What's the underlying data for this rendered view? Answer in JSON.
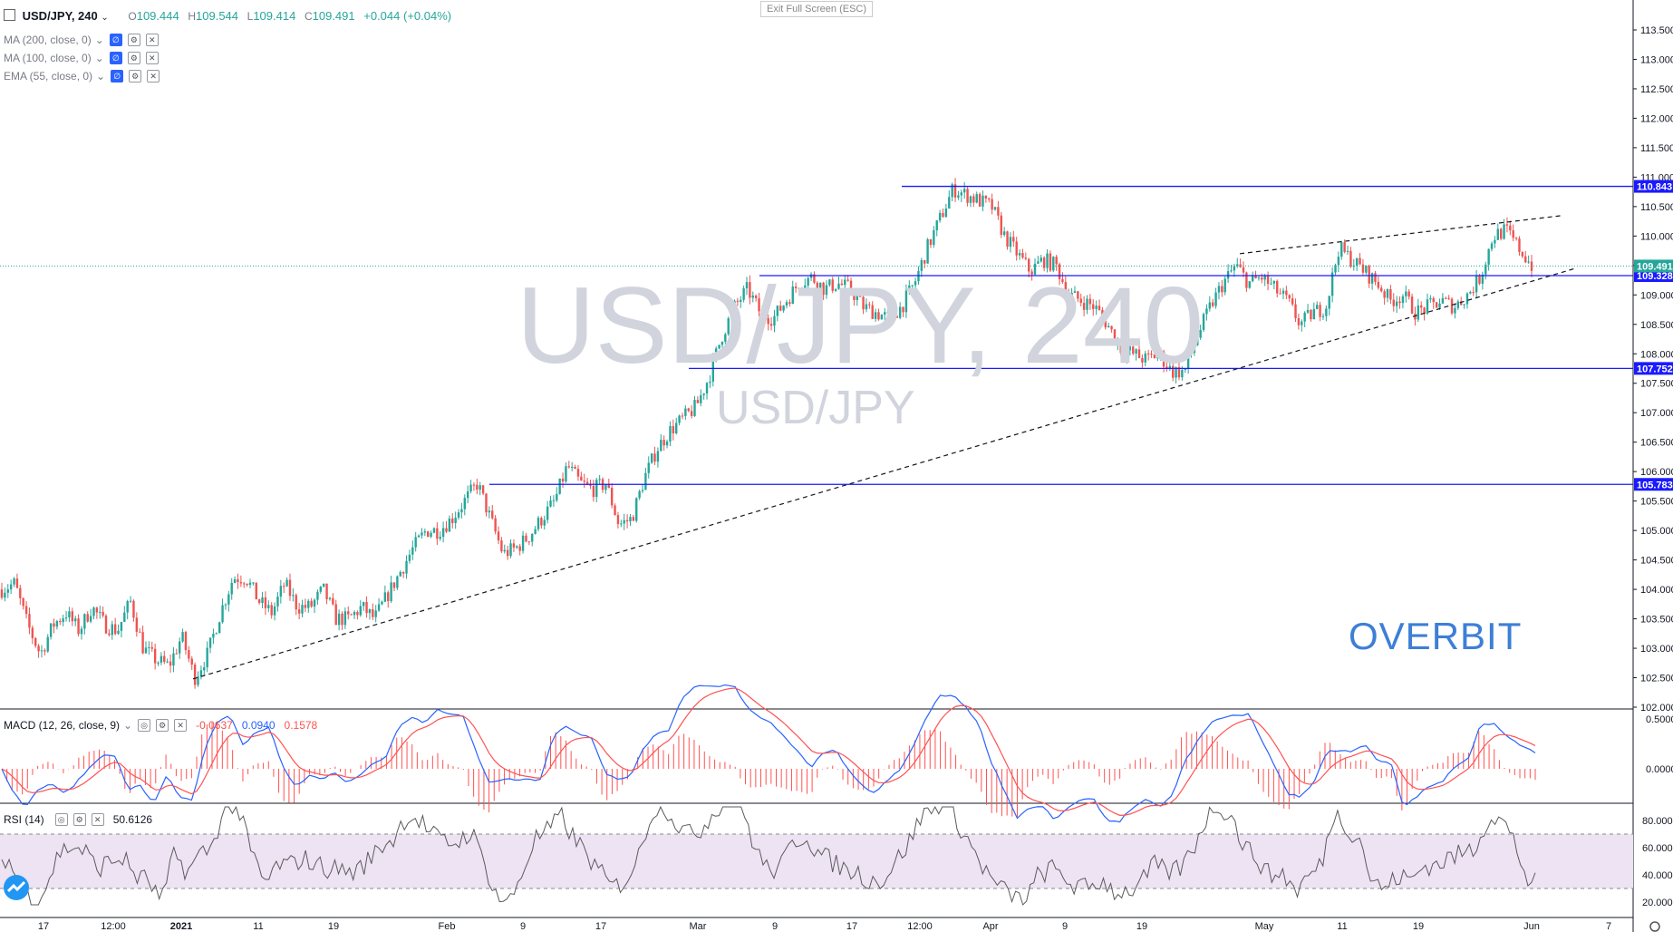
{
  "header": {
    "symbol": "USD/JPY, 240",
    "open_label": "O",
    "open": "109.444",
    "high_label": "H",
    "high": "109.544",
    "low_label": "L",
    "low": "109.414",
    "close_label": "C",
    "close": "109.491",
    "change": "+0.044 (+0.04%)"
  },
  "indicators": [
    {
      "label": "MA (200, close, 0)"
    },
    {
      "label": "MA (100, close, 0)"
    },
    {
      "label": "EMA (55, close, 0)"
    }
  ],
  "exit_fullscreen": "Exit Full Screen (ESC)",
  "watermark": {
    "main": "USD/JPY, 240",
    "sub": "USD/JPY"
  },
  "brand": "OVERBIT",
  "macd": {
    "label": "MACD (12, 26, close, 9)",
    "v1": "-0.0637",
    "v2": "0.0940",
    "v3": "0.1578"
  },
  "rsi": {
    "label": "RSI (14)",
    "value": "50.6126"
  },
  "colors": {
    "up": "#26a69a",
    "down": "#ef5350",
    "level": "#1a1aff",
    "macd": "#2962ff",
    "signal": "#ff5252",
    "rsi": "#5b5b5b",
    "rsi_band": "#ede3f3"
  },
  "chart_data": {
    "type": "candlestick",
    "price_axis": {
      "ticks": [
        "113.500",
        "113.000",
        "112.500",
        "112.000",
        "111.500",
        "111.000",
        "110.500",
        "110.000",
        "109.500",
        "109.000",
        "108.500",
        "108.000",
        "107.500",
        "107.000",
        "106.500",
        "106.000",
        "105.500",
        "105.000",
        "104.500",
        "104.000",
        "103.500",
        "103.000",
        "102.500",
        "102.000"
      ],
      "range": [
        102.0,
        113.7
      ]
    },
    "time_axis": [
      "17",
      "12:00",
      "2021",
      "11",
      "19",
      "Feb",
      "9",
      "17",
      "Mar",
      "9",
      "17",
      "12:00",
      "Apr",
      "9",
      "19",
      "May",
      "11",
      "19",
      "Jun",
      "7"
    ],
    "price_path": [
      [
        0,
        104.0
      ],
      [
        3,
        104.1
      ],
      [
        6,
        103.4
      ],
      [
        9,
        102.9
      ],
      [
        12,
        103.4
      ],
      [
        15,
        103.6
      ],
      [
        18,
        103.3
      ],
      [
        21,
        103.7
      ],
      [
        24,
        103.4
      ],
      [
        27,
        103.3
      ],
      [
        30,
        103.8
      ],
      [
        33,
        103.0
      ],
      [
        36,
        102.8
      ],
      [
        39,
        102.7
      ],
      [
        42,
        103.2
      ],
      [
        45,
        102.5
      ],
      [
        48,
        102.9
      ],
      [
        51,
        103.6
      ],
      [
        54,
        104.2
      ],
      [
        57,
        104.2
      ],
      [
        60,
        103.8
      ],
      [
        63,
        103.6
      ],
      [
        66,
        104.1
      ],
      [
        69,
        103.7
      ],
      [
        72,
        103.7
      ],
      [
        75,
        104.0
      ],
      [
        78,
        103.5
      ],
      [
        81,
        103.5
      ],
      [
        84,
        103.7
      ],
      [
        87,
        103.5
      ],
      [
        90,
        103.9
      ],
      [
        93,
        104.3
      ],
      [
        96,
        104.7
      ],
      [
        99,
        105.0
      ],
      [
        102,
        105.0
      ],
      [
        105,
        105.2
      ],
      [
        108,
        105.5
      ],
      [
        111,
        105.8
      ],
      [
        114,
        105.2
      ],
      [
        117,
        104.6
      ],
      [
        120,
        104.7
      ],
      [
        123,
        104.9
      ],
      [
        126,
        105.2
      ],
      [
        129,
        105.5
      ],
      [
        132,
        106.1
      ],
      [
        135,
        105.8
      ],
      [
        138,
        105.7
      ],
      [
        141,
        105.8
      ],
      [
        144,
        105.1
      ],
      [
        147,
        105.2
      ],
      [
        150,
        105.9
      ],
      [
        153,
        106.4
      ],
      [
        156,
        106.7
      ],
      [
        159,
        106.9
      ],
      [
        162,
        107.1
      ],
      [
        165,
        107.6
      ],
      [
        168,
        108.3
      ],
      [
        171,
        108.8
      ],
      [
        174,
        109.1
      ],
      [
        177,
        108.7
      ],
      [
        180,
        108.6
      ],
      [
        183,
        108.9
      ],
      [
        186,
        109.2
      ],
      [
        189,
        109.3
      ],
      [
        192,
        109.1
      ],
      [
        195,
        109.2
      ],
      [
        198,
        109.1
      ],
      [
        201,
        108.8
      ],
      [
        204,
        108.7
      ],
      [
        207,
        108.6
      ],
      [
        210,
        108.8
      ],
      [
        213,
        109.2
      ],
      [
        216,
        109.8
      ],
      [
        219,
        110.3
      ],
      [
        222,
        110.8
      ],
      [
        225,
        110.7
      ],
      [
        228,
        110.6
      ],
      [
        231,
        110.5
      ],
      [
        234,
        110.0
      ],
      [
        237,
        109.7
      ],
      [
        240,
        109.4
      ],
      [
        243,
        109.6
      ],
      [
        246,
        109.5
      ],
      [
        249,
        109.0
      ],
      [
        252,
        108.9
      ],
      [
        255,
        108.8
      ],
      [
        258,
        108.5
      ],
      [
        261,
        108.1
      ],
      [
        264,
        108.0
      ],
      [
        267,
        107.9
      ],
      [
        270,
        108.0
      ],
      [
        273,
        107.7
      ],
      [
        276,
        107.7
      ],
      [
        279,
        108.3
      ],
      [
        282,
        108.8
      ],
      [
        285,
        109.2
      ],
      [
        288,
        109.5
      ],
      [
        291,
        109.2
      ],
      [
        294,
        109.3
      ],
      [
        297,
        109.1
      ],
      [
        300,
        108.9
      ],
      [
        303,
        108.5
      ],
      [
        306,
        108.7
      ],
      [
        309,
        108.8
      ],
      [
        312,
        109.8
      ],
      [
        315,
        109.6
      ],
      [
        318,
        109.4
      ],
      [
        321,
        109.2
      ],
      [
        324,
        108.9
      ],
      [
        327,
        109.0
      ],
      [
        330,
        108.7
      ],
      [
        333,
        108.8
      ],
      [
        336,
        108.9
      ],
      [
        339,
        108.8
      ],
      [
        342,
        109.0
      ],
      [
        345,
        109.3
      ],
      [
        348,
        110.0
      ],
      [
        351,
        110.1
      ],
      [
        354,
        109.8
      ],
      [
        357,
        109.5
      ]
    ],
    "levels": [
      {
        "value": 110.843,
        "label": "110.843"
      },
      {
        "value": 109.328,
        "label": "109.328"
      },
      {
        "value": 107.752,
        "label": "107.752"
      },
      {
        "value": 105.783,
        "label": "105.783"
      }
    ],
    "last_price": {
      "value": 109.491,
      "label": "109.491"
    },
    "macd_axis": [
      "0.5000",
      "0.0000"
    ],
    "rsi_axis": [
      "80.0000",
      "60.0000",
      "40.0000",
      "20.0000"
    ]
  }
}
